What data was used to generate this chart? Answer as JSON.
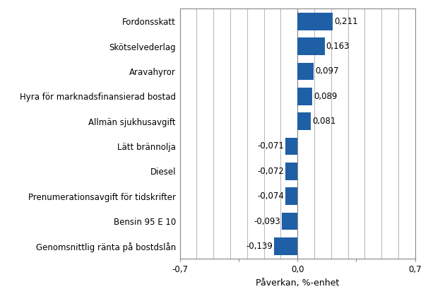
{
  "categories": [
    "Genomsnittlig ränta på bostdslån",
    "Bensin 95 E 10",
    "Prenumerationsavgift för tidskrifter",
    "Diesel",
    "Lätt brännolja",
    "Allmän sjukhusavgift",
    "Hyra för marknadsfinansierad bostad",
    "Aravahyror",
    "Skötselvederlag",
    "Fordonsskatt"
  ],
  "values": [
    -0.139,
    -0.093,
    -0.074,
    -0.072,
    -0.071,
    0.081,
    0.089,
    0.097,
    0.163,
    0.211
  ],
  "bar_color": "#1f5fa6",
  "xlabel": "Påverkan, %-enhet",
  "xlim": [
    -0.7,
    0.7
  ],
  "xticks": [
    -0.7,
    -0.35,
    0.0,
    0.35,
    0.7
  ],
  "xtick_labels": [
    "-0,7",
    "",
    "0,0",
    "",
    "0,7"
  ],
  "grid_xticks": [
    -0.6,
    -0.5,
    -0.4,
    -0.3,
    -0.2,
    -0.1,
    0.0,
    0.1,
    0.2,
    0.3,
    0.4,
    0.5,
    0.6
  ],
  "label_fontsize": 8.5,
  "xlabel_fontsize": 9,
  "value_label_fontsize": 8.5,
  "background_color": "#ffffff",
  "grid_color": "#bbbbbb"
}
